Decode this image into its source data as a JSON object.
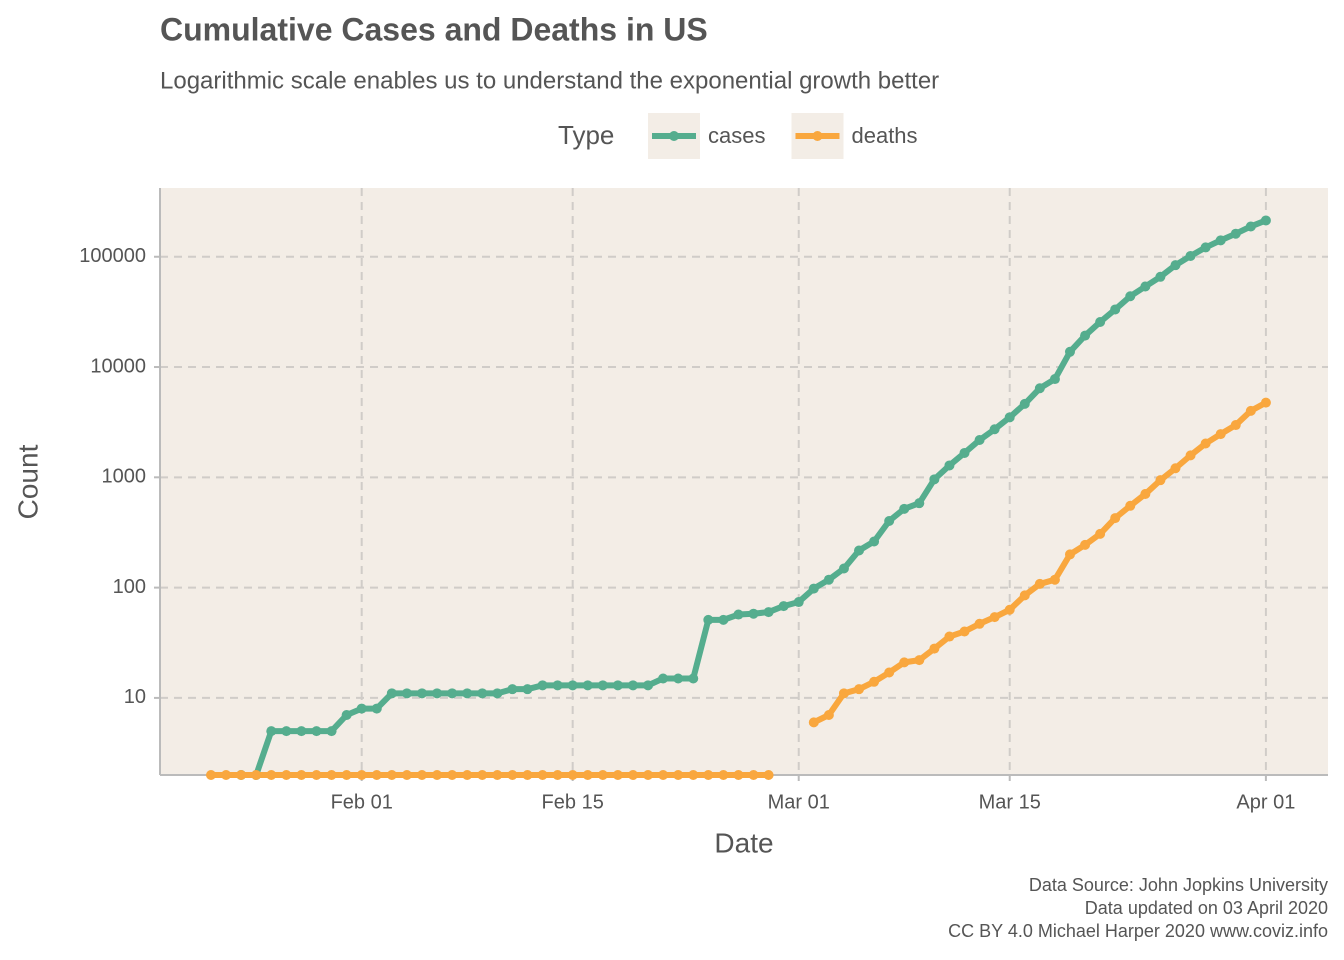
{
  "chart_data": {
    "type": "line",
    "title": "Cumulative Cases and Deaths in US",
    "subtitle": "Logarithmic scale enables us to understand the exponential growth better",
    "x_label": "Date",
    "y_label": "Count",
    "legend_title": "Type",
    "legend": "top",
    "log_scale": true,
    "grid": true,
    "caption": [
      "Data Source: John Jopkins University",
      "Data updated on 03 April 2020",
      "CC BY 4.0 Michael Harper 2020 www.coviz.info"
    ],
    "x": [
      "Jan 22",
      "Jan 23",
      "Jan 24",
      "Jan 25",
      "Jan 26",
      "Jan 27",
      "Jan 28",
      "Jan 29",
      "Jan 30",
      "Jan 31",
      "Feb 01",
      "Feb 02",
      "Feb 03",
      "Feb 04",
      "Feb 05",
      "Feb 06",
      "Feb 07",
      "Feb 08",
      "Feb 09",
      "Feb 10",
      "Feb 11",
      "Feb 12",
      "Feb 13",
      "Feb 14",
      "Feb 15",
      "Feb 16",
      "Feb 17",
      "Feb 18",
      "Feb 19",
      "Feb 20",
      "Feb 21",
      "Feb 22",
      "Feb 23",
      "Feb 24",
      "Feb 25",
      "Feb 26",
      "Feb 27",
      "Feb 28",
      "Feb 29",
      "Mar 01",
      "Mar 02",
      "Mar 03",
      "Mar 04",
      "Mar 05",
      "Mar 06",
      "Mar 07",
      "Mar 08",
      "Mar 09",
      "Mar 10",
      "Mar 11",
      "Mar 12",
      "Mar 13",
      "Mar 14",
      "Mar 15",
      "Mar 16",
      "Mar 17",
      "Mar 18",
      "Mar 19",
      "Mar 20",
      "Mar 21",
      "Mar 22",
      "Mar 23",
      "Mar 24",
      "Mar 25",
      "Mar 26",
      "Mar 27",
      "Mar 28",
      "Mar 29",
      "Mar 30",
      "Mar 31",
      "Apr 01"
    ],
    "xticks": [
      "Feb 01",
      "Feb 15",
      "Mar 01",
      "Mar 15",
      "Apr 01"
    ],
    "ylim": [
      2,
      420000
    ],
    "yticks": [
      10,
      100,
      1000,
      10000,
      100000
    ],
    "series": [
      {
        "name": "cases",
        "color": "#55ad8e",
        "values": [
          1,
          1,
          2,
          2,
          5,
          5,
          5,
          5,
          5,
          7,
          8,
          8,
          11,
          11,
          11,
          11,
          11,
          11,
          11,
          11,
          12,
          12,
          13,
          13,
          13,
          13,
          13,
          13,
          13,
          13,
          15,
          15,
          15,
          51,
          51,
          57,
          58,
          60,
          68,
          74,
          98,
          118,
          149,
          217,
          262,
          402,
          518,
          583,
          959,
          1281,
          1663,
          2179,
          2727,
          3499,
          4632,
          6421,
          7783,
          13747,
          19273,
          25600,
          33276,
          43847,
          53740,
          65778,
          83836,
          101657,
          121478,
          140886,
          161807,
          188172,
          213372
        ]
      },
      {
        "name": "deaths",
        "color": "#f9a73e",
        "values": [
          0,
          0,
          0,
          0,
          0,
          0,
          0,
          0,
          0,
          0,
          0,
          0,
          0,
          0,
          0,
          0,
          0,
          0,
          0,
          0,
          0,
          0,
          0,
          0,
          0,
          0,
          0,
          0,
          0,
          0,
          0,
          0,
          0,
          0,
          0,
          0,
          0,
          0,
          1,
          1,
          6,
          7,
          11,
          12,
          14,
          17,
          21,
          22,
          28,
          36,
          40,
          47,
          54,
          63,
          85,
          108,
          118,
          200,
          244,
          307,
          427,
          552,
          706,
          942,
          1209,
          1581,
          2026,
          2467,
          2978,
          4005,
          4757
        ]
      }
    ]
  }
}
